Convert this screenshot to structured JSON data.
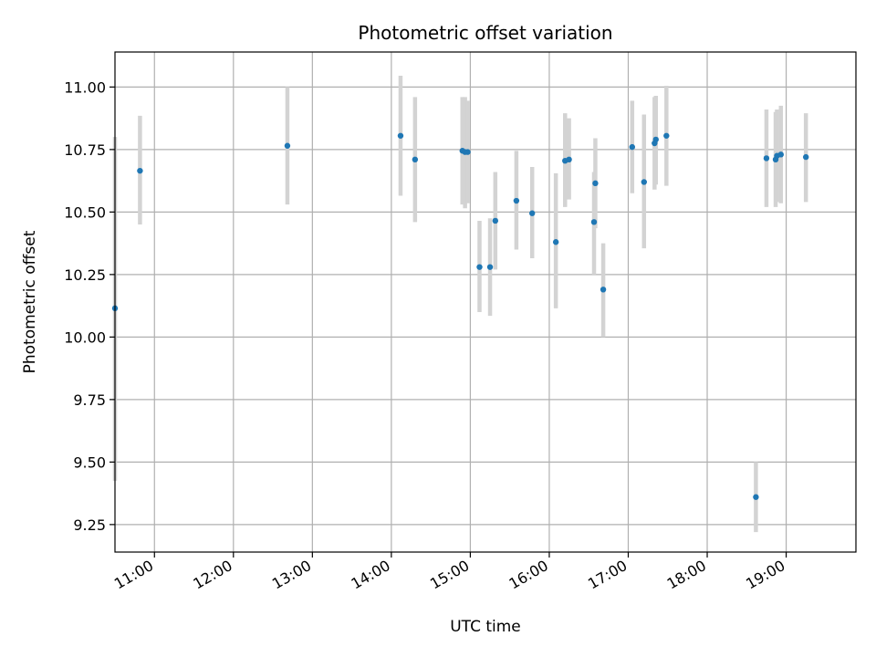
{
  "chart_data": {
    "type": "scatter",
    "title": "Photometric offset variation",
    "xlabel": "UTC time",
    "ylabel": "Photometric offset",
    "x_unit": "UTC time (HH:MM)",
    "xlim": [
      "10:30",
      "19:53"
    ],
    "ylim": [
      9.14,
      11.14
    ],
    "x_ticks": [
      "11:00",
      "12:00",
      "13:00",
      "14:00",
      "15:00",
      "16:00",
      "17:00",
      "18:00",
      "19:00"
    ],
    "y_ticks": [
      9.25,
      9.5,
      9.75,
      10.0,
      10.25,
      10.5,
      10.75,
      11.0
    ],
    "y_tick_labels": [
      "9.25",
      "9.50",
      "9.75",
      "10.00",
      "10.25",
      "10.50",
      "10.75",
      "11.00"
    ],
    "grid": true,
    "legend": "none",
    "colors": {
      "point": "#1f77b4",
      "errorbar": "#d3d3d3",
      "grid": "#b0b0b0"
    },
    "series": [
      {
        "points": [
          {
            "x": "10:30",
            "y": 10.115,
            "low": 9.425,
            "high": 10.8
          },
          {
            "x": "10:49",
            "y": 10.665,
            "low": 10.45,
            "high": 10.885
          },
          {
            "x": "12:41",
            "y": 10.765,
            "low": 10.53,
            "high": 11.0
          },
          {
            "x": "14:07",
            "y": 10.805,
            "low": 10.565,
            "high": 11.045
          },
          {
            "x": "14:18",
            "y": 10.71,
            "low": 10.46,
            "high": 10.96
          },
          {
            "x": "14:54",
            "y": 10.745,
            "low": 10.53,
            "high": 10.96
          },
          {
            "x": "14:56",
            "y": 10.74,
            "low": 10.515,
            "high": 10.96
          },
          {
            "x": "14:58",
            "y": 10.74,
            "low": 10.535,
            "high": 10.945
          },
          {
            "x": "15:07",
            "y": 10.28,
            "low": 10.1,
            "high": 10.465
          },
          {
            "x": "15:15",
            "y": 10.28,
            "low": 10.085,
            "high": 10.475
          },
          {
            "x": "15:19",
            "y": 10.465,
            "low": 10.27,
            "high": 10.66
          },
          {
            "x": "15:35",
            "y": 10.545,
            "low": 10.35,
            "high": 10.745
          },
          {
            "x": "15:47",
            "y": 10.495,
            "low": 10.315,
            "high": 10.68
          },
          {
            "x": "16:05",
            "y": 10.38,
            "low": 10.115,
            "high": 10.655
          },
          {
            "x": "16:12",
            "y": 10.705,
            "low": 10.52,
            "high": 10.895
          },
          {
            "x": "16:15",
            "y": 10.71,
            "low": 10.55,
            "high": 10.875
          },
          {
            "x": "16:34",
            "y": 10.46,
            "low": 10.25,
            "high": 10.66
          },
          {
            "x": "16:35",
            "y": 10.615,
            "low": 10.435,
            "high": 10.795
          },
          {
            "x": "16:41",
            "y": 10.19,
            "low": 10.0,
            "high": 10.375
          },
          {
            "x": "17:03",
            "y": 10.76,
            "low": 10.575,
            "high": 10.945
          },
          {
            "x": "17:12",
            "y": 10.62,
            "low": 10.355,
            "high": 10.89
          },
          {
            "x": "17:20",
            "y": 10.775,
            "low": 10.59,
            "high": 10.96
          },
          {
            "x": "17:21",
            "y": 10.79,
            "low": 10.61,
            "high": 10.965
          },
          {
            "x": "17:29",
            "y": 10.805,
            "low": 10.605,
            "high": 11.005
          },
          {
            "x": "18:37",
            "y": 9.36,
            "low": 9.22,
            "high": 9.5
          },
          {
            "x": "18:45",
            "y": 10.715,
            "low": 10.52,
            "high": 10.91
          },
          {
            "x": "18:52",
            "y": 10.71,
            "low": 10.52,
            "high": 10.9
          },
          {
            "x": "18:53",
            "y": 10.725,
            "low": 10.54,
            "high": 10.91
          },
          {
            "x": "18:56",
            "y": 10.73,
            "low": 10.535,
            "high": 10.925
          },
          {
            "x": "19:15",
            "y": 10.72,
            "low": 10.54,
            "high": 10.895
          }
        ]
      }
    ]
  }
}
